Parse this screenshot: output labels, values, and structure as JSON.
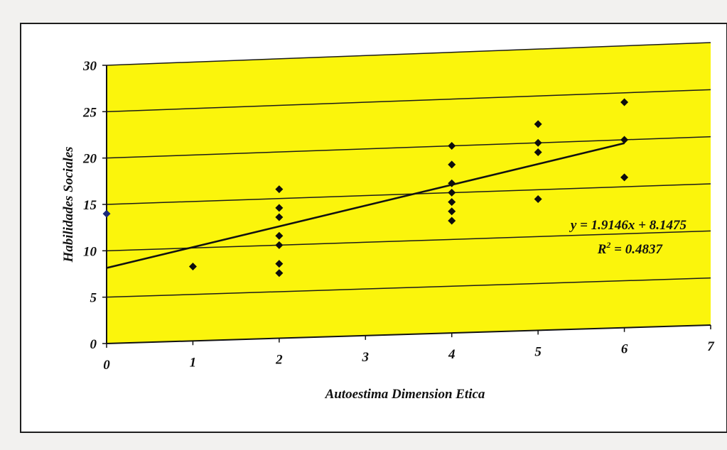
{
  "chart_data": {
    "type": "scatter",
    "title": "",
    "xlabel": "Autoestima Dimension Etica",
    "ylabel": "Habilidades Sociales",
    "xlim": [
      0,
      7
    ],
    "ylim": [
      0,
      30
    ],
    "x_ticks": [
      "0",
      "1",
      "2",
      "3",
      "4",
      "5",
      "6",
      "7"
    ],
    "y_ticks": [
      "0",
      "5",
      "10",
      "15",
      "20",
      "25",
      "30"
    ],
    "grid": true,
    "legend": "none",
    "plot_background": "#fbf50c",
    "point_color": "#0d0d0d",
    "line_color": "#111111",
    "points": [
      {
        "x": 0,
        "y": 14
      },
      {
        "x": 1,
        "y": 8
      },
      {
        "x": 2,
        "y": 16
      },
      {
        "x": 2,
        "y": 14
      },
      {
        "x": 2,
        "y": 13
      },
      {
        "x": 2,
        "y": 11
      },
      {
        "x": 2,
        "y": 10
      },
      {
        "x": 2,
        "y": 8
      },
      {
        "x": 2,
        "y": 7
      },
      {
        "x": 4,
        "y": 20
      },
      {
        "x": 4,
        "y": 18
      },
      {
        "x": 4,
        "y": 16
      },
      {
        "x": 4,
        "y": 15
      },
      {
        "x": 4,
        "y": 14
      },
      {
        "x": 4,
        "y": 13
      },
      {
        "x": 4,
        "y": 12
      },
      {
        "x": 5,
        "y": 22
      },
      {
        "x": 5,
        "y": 20
      },
      {
        "x": 5,
        "y": 19
      },
      {
        "x": 5,
        "y": 14
      },
      {
        "x": 6,
        "y": 24
      },
      {
        "x": 6,
        "y": 20
      },
      {
        "x": 6,
        "y": 16
      }
    ],
    "trendline": {
      "slope": 1.9146,
      "intercept": 8.1475,
      "x_range": [
        0,
        6
      ]
    },
    "annotations": {
      "equation": "y = 1.9146x + 8.1475",
      "r2_label": "R",
      "r2_sup": "2",
      "r2_value": " = 0.4837"
    }
  }
}
